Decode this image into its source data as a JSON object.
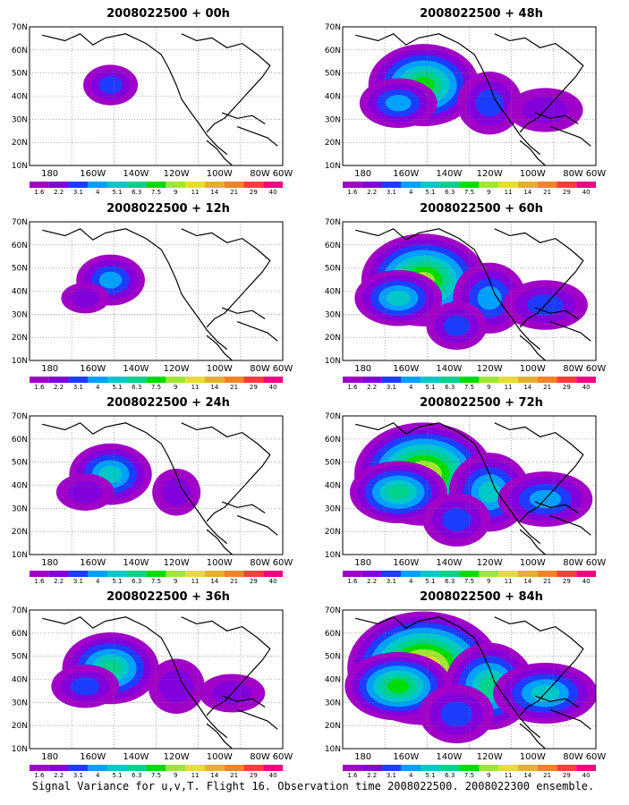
{
  "panels": [
    {
      "title": "2008022500 + 00h",
      "level": 0
    },
    {
      "title": "2008022500 + 12h",
      "level": 1
    },
    {
      "title": "2008022500 + 24h",
      "level": 2
    },
    {
      "title": "2008022500 + 36h",
      "level": 3
    },
    {
      "title": "2008022500 + 48h",
      "level": 4
    },
    {
      "title": "2008022500 + 60h",
      "level": 5
    },
    {
      "title": "2008022500 + 72h",
      "level": 6
    },
    {
      "title": "2008022500 + 84h",
      "level": 7
    }
  ],
  "lat_labels": [
    "70N",
    "60N",
    "50N",
    "40N",
    "30N",
    "20N",
    "10N"
  ],
  "lon_labels": [
    "180",
    "160W",
    "140W",
    "120W",
    "100W",
    "80W",
    "60W"
  ],
  "colorbar": {
    "labels": [
      "1.6",
      "2.2",
      "3.1",
      "4",
      "5.1",
      "6.3",
      "7.5",
      "9",
      "11",
      "14",
      "21",
      "29",
      "40"
    ],
    "colors": [
      "#a000c8",
      "#8200dc",
      "#1e3cff",
      "#00a0ff",
      "#00c8c8",
      "#00d28c",
      "#00dc00",
      "#a0e632",
      "#e6dc32",
      "#e6af2d",
      "#f08228",
      "#fa3c3c",
      "#f00082"
    ]
  },
  "caption": "Signal Variance for u,v,T. Flight 16. Observation time 2008022500. 2008022300 ensemble."
}
